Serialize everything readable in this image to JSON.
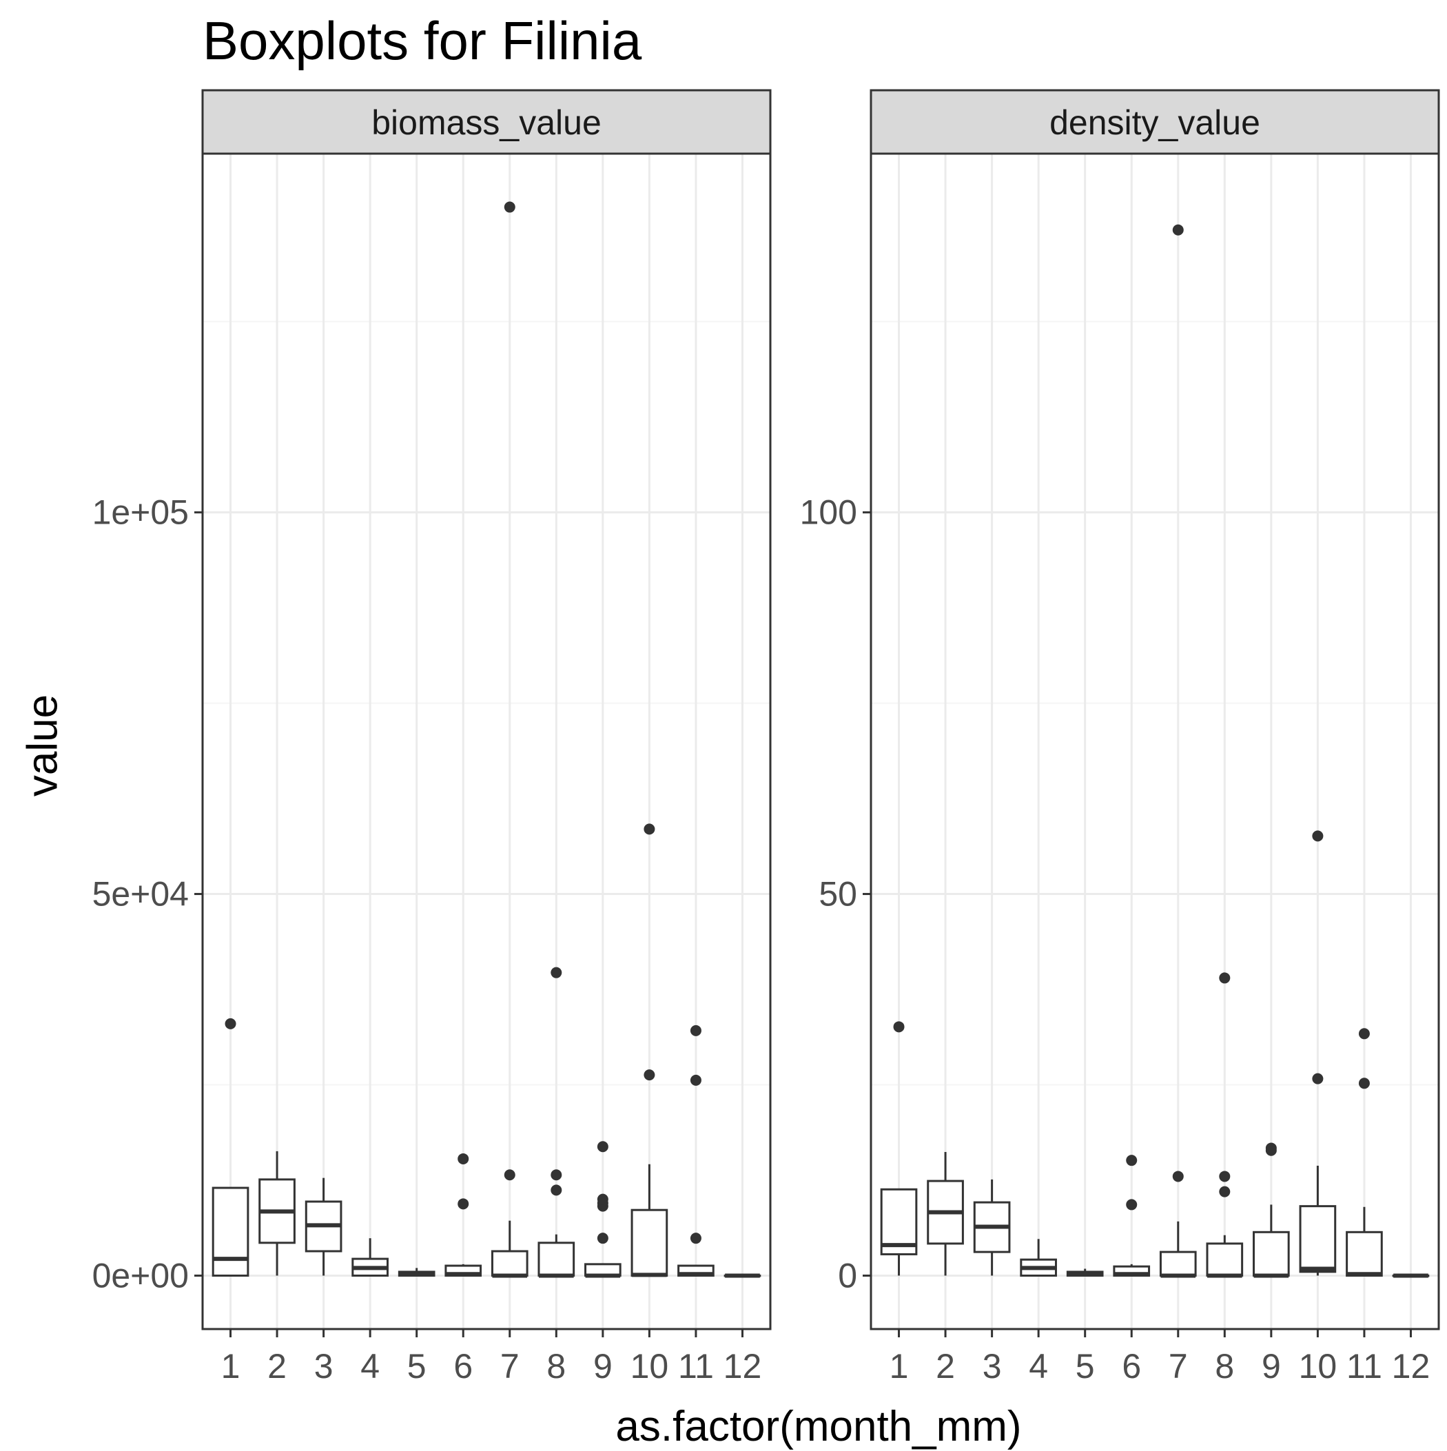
{
  "chart_data": {
    "type": "boxplot",
    "title": "Boxplots for Filinia",
    "xlabel": "as.factor(month_mm)",
    "ylabel": "value",
    "categories": [
      "1",
      "2",
      "3",
      "4",
      "5",
      "6",
      "7",
      "8",
      "9",
      "10",
      "11",
      "12"
    ],
    "grid": true,
    "legend": "none",
    "panels": [
      {
        "name": "biomass_value",
        "ylim": [
          -7000,
          147000
        ],
        "yticks": [
          0,
          50000,
          100000
        ],
        "ytick_labels": [
          "0e+00",
          "5e+04",
          "1e+05"
        ],
        "boxes": [
          {
            "x": "1",
            "low": 0,
            "q1": 0,
            "median": 2200,
            "q3": 11500,
            "high": 11500,
            "outliers": [
              33000
            ]
          },
          {
            "x": "2",
            "low": 0,
            "q1": 4300,
            "median": 8400,
            "q3": 12600,
            "high": 16300,
            "outliers": []
          },
          {
            "x": "3",
            "low": 0,
            "q1": 3200,
            "median": 6600,
            "q3": 9700,
            "high": 12800,
            "outliers": []
          },
          {
            "x": "4",
            "low": 0,
            "q1": 0,
            "median": 1000,
            "q3": 2200,
            "high": 4900,
            "outliers": []
          },
          {
            "x": "5",
            "low": 0,
            "q1": 0,
            "median": 200,
            "q3": 500,
            "high": 1000,
            "outliers": []
          },
          {
            "x": "6",
            "low": 0,
            "q1": 0,
            "median": 200,
            "q3": 1300,
            "high": 1500,
            "outliers": [
              9400,
              15300
            ]
          },
          {
            "x": "7",
            "low": 0,
            "q1": 0,
            "median": 0,
            "q3": 3200,
            "high": 7200,
            "outliers": [
              13200,
              140000
            ]
          },
          {
            "x": "8",
            "low": 0,
            "q1": 0,
            "median": 0,
            "q3": 4300,
            "high": 5400,
            "outliers": [
              11200,
              13200,
              39700
            ]
          },
          {
            "x": "9",
            "low": 0,
            "q1": 0,
            "median": 0,
            "q3": 1500,
            "high": 1500,
            "outliers": [
              4900,
              9100,
              9500,
              10000,
              16900
            ]
          },
          {
            "x": "10",
            "low": 0,
            "q1": 0,
            "median": 100,
            "q3": 8600,
            "high": 14600,
            "outliers": [
              26300,
              58500
            ]
          },
          {
            "x": "11",
            "low": 0,
            "q1": 0,
            "median": 200,
            "q3": 1300,
            "high": 1300,
            "outliers": [
              4900,
              25600,
              32100
            ]
          },
          {
            "x": "12",
            "low": 0,
            "q1": 0,
            "median": 0,
            "q3": 0,
            "high": 0,
            "outliers": []
          }
        ]
      },
      {
        "name": "density_value",
        "ylim": [
          -7,
          147
        ],
        "yticks": [
          0,
          50,
          100
        ],
        "ytick_labels": [
          "0",
          "50",
          "100"
        ],
        "boxes": [
          {
            "x": "1",
            "low": 0,
            "q1": 2.8,
            "median": 4.0,
            "q3": 11.3,
            "high": 11.3,
            "outliers": [
              32.6
            ]
          },
          {
            "x": "2",
            "low": 0,
            "q1": 4.2,
            "median": 8.3,
            "q3": 12.4,
            "high": 16.2,
            "outliers": []
          },
          {
            "x": "3",
            "low": 0,
            "q1": 3.1,
            "median": 6.4,
            "q3": 9.6,
            "high": 12.6,
            "outliers": []
          },
          {
            "x": "4",
            "low": 0,
            "q1": 0,
            "median": 1.0,
            "q3": 2.1,
            "high": 4.8,
            "outliers": []
          },
          {
            "x": "5",
            "low": 0,
            "q1": 0,
            "median": 0.2,
            "q3": 0.5,
            "high": 0.9,
            "outliers": []
          },
          {
            "x": "6",
            "low": 0,
            "q1": 0,
            "median": 0.2,
            "q3": 1.2,
            "high": 1.5,
            "outliers": [
              9.3,
              15.1
            ]
          },
          {
            "x": "7",
            "low": 0,
            "q1": 0,
            "median": 0,
            "q3": 3.1,
            "high": 7.1,
            "outliers": [
              13.0,
              137.0
            ]
          },
          {
            "x": "8",
            "low": 0,
            "q1": 0,
            "median": 0,
            "q3": 4.2,
            "high": 5.3,
            "outliers": [
              11.0,
              13.0,
              39.0
            ]
          },
          {
            "x": "9",
            "low": 0,
            "q1": 0,
            "median": 0,
            "q3": 5.7,
            "high": 9.3,
            "outliers": [
              16.4,
              16.7
            ]
          },
          {
            "x": "10",
            "low": 0,
            "q1": 0.5,
            "median": 0.9,
            "q3": 9.1,
            "high": 14.4,
            "outliers": [
              25.8,
              57.6
            ]
          },
          {
            "x": "11",
            "low": 0,
            "q1": 0,
            "median": 0.2,
            "q3": 5.7,
            "high": 9.0,
            "outliers": [
              25.2,
              31.7
            ]
          },
          {
            "x": "12",
            "low": 0,
            "q1": 0,
            "median": 0,
            "q3": 0,
            "high": 0,
            "outliers": []
          }
        ]
      }
    ]
  },
  "colors": {
    "strip_fill": "#d9d9d9",
    "panel_border": "#333333",
    "grid_major": "#ebebeb",
    "grid_minor": "#f5f5f5",
    "box_line": "#333333",
    "outlier": "#333333",
    "tick_label": "#4d4d4d"
  }
}
